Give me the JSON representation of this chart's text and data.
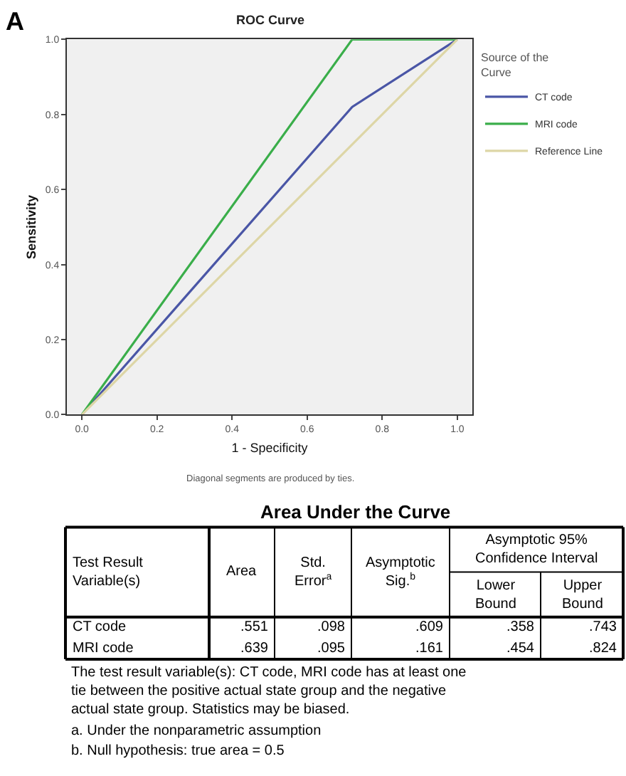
{
  "chart_data": [
    {
      "type": "line",
      "title": "ROC Curve",
      "xlabel": "1 - Specificity",
      "ylabel": "Sensitivity",
      "legend_title": "Source of the Curve",
      "xlim": [
        -0.04,
        1.04
      ],
      "ylim": [
        0,
        1.0
      ],
      "xticks": [
        {
          "value": 0,
          "label": "0.0"
        },
        0.2,
        0.4,
        0.6,
        0.8,
        {
          "value": 1,
          "label": "1.0"
        }
      ],
      "yticks": [
        {
          "value": 0,
          "label": "0.0"
        },
        0.2,
        0.4,
        0.6,
        0.8,
        {
          "value": 1,
          "label": "1.0"
        }
      ],
      "grid": false,
      "legend": "right",
      "marker": "none",
      "line_style": "solid",
      "series": [
        {
          "name": "CT code",
          "color": "#4a56a6",
          "x": [
            0,
            0.72,
            1
          ],
          "values": [
            0,
            0.82,
            1
          ]
        },
        {
          "name": "MRI code",
          "color": "#3aae4a",
          "x": [
            0,
            0.72,
            1
          ],
          "values": [
            0,
            1,
            1
          ]
        },
        {
          "name": "Reference Line",
          "color": "#ddd6a6",
          "x": [
            0,
            1
          ],
          "values": [
            0,
            1
          ]
        }
      ],
      "annotations": [
        "A",
        "Diagonal segments are produced by ties."
      ]
    },
    {
      "type": "other",
      "title": "Area Under the Curve",
      "ylabel": "Test Result Variable(s)",
      "xlabel": "Asymptotic 95% Confidence Interval",
      "categories": [
        "Area",
        "Std. Error$^{a}$",
        "Asymptotic Sig.$^{b}$",
        "Lower Bound",
        "Upper Bound"
      ],
      "y_categories": [
        "CT code",
        "MRI code"
      ],
      "cell_labels": [
        [
          ".551",
          ".098",
          ".609",
          ".358",
          ".743"
        ],
        [
          ".639",
          ".095",
          ".161",
          ".454",
          ".824"
        ]
      ],
      "annotations": [
        "The test result variable(s): CT code, MRI code has at least one tie between the positive actual state group and the negative actual state group. Statistics may be biased.",
        "a. Under the nonparametric assumption",
        "b. Null hypothesis: true area = 0.5"
      ]
    }
  ]
}
